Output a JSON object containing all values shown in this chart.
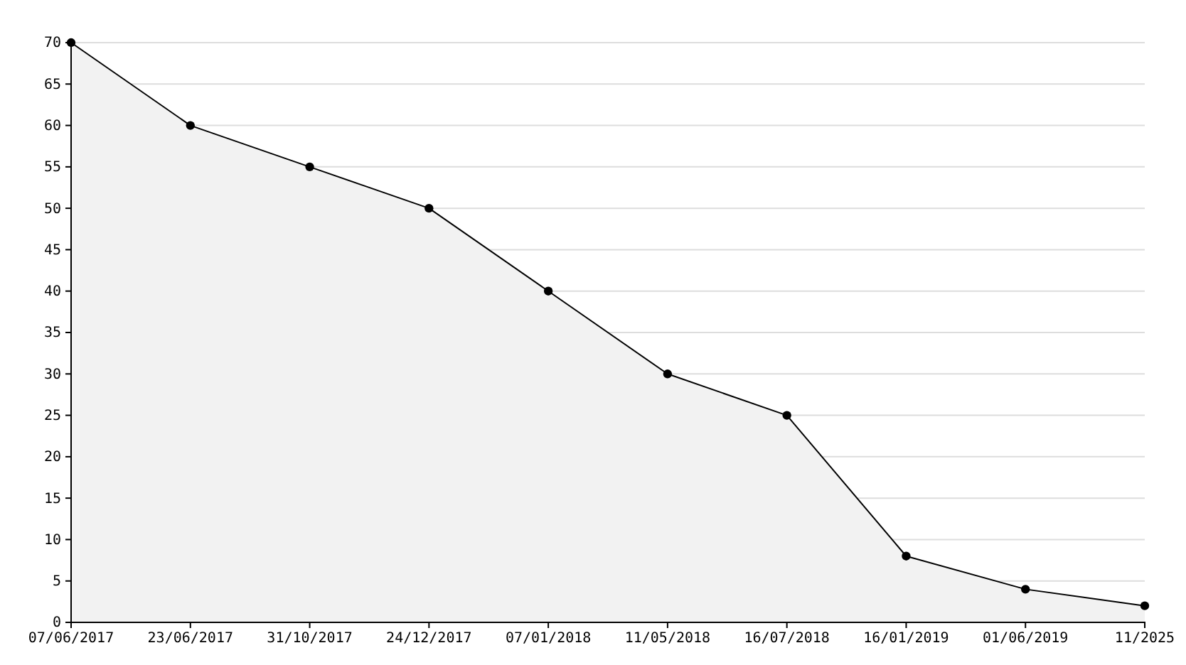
{
  "chart_data": {
    "type": "area",
    "categories": [
      "07/06/2017",
      "23/06/2017",
      "31/10/2017",
      "24/12/2017",
      "07/01/2018",
      "11/05/2018",
      "16/07/2018",
      "16/01/2019",
      "01/06/2019",
      "11/2025"
    ],
    "series": [
      {
        "color": "#000000",
        "values": [
          70,
          60,
          55,
          50,
          40,
          30,
          25,
          8,
          4,
          2
        ]
      }
    ],
    "ylim": [
      0,
      70
    ],
    "yticks": [
      0,
      5,
      10,
      15,
      20,
      25,
      30,
      35,
      40,
      45,
      50,
      55,
      60,
      65,
      70
    ],
    "grid": "y",
    "marker": "circle",
    "line_style": "solid"
  }
}
